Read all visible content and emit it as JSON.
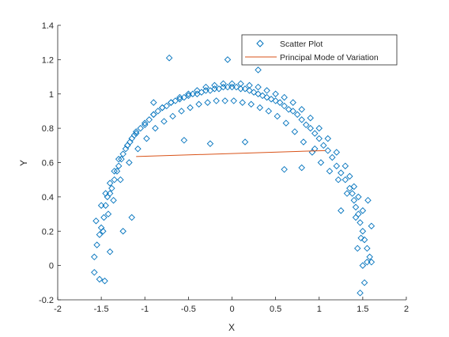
{
  "chart_data": {
    "type": "scatter",
    "xlabel": "X",
    "ylabel": "Y",
    "xlim": [
      -2,
      2
    ],
    "ylim": [
      -0.2,
      1.4
    ],
    "xticks": [
      "-2",
      "-1.5",
      "-1",
      "-0.5",
      "0",
      "0.5",
      "1",
      "1.5",
      "2"
    ],
    "yticks": [
      "-0.2",
      "0",
      "0.2",
      "0.4",
      "0.6",
      "0.8",
      "1",
      "1.2",
      "1.4"
    ],
    "grid": false,
    "legend_position": "top-right",
    "series": [
      {
        "name": "Scatter Plot",
        "kind": "scatter",
        "marker": "diamond",
        "color": "#0072BD",
        "x": [
          -1.58,
          -1.55,
          -1.52,
          -1.5,
          -1.47,
          -1.45,
          -1.43,
          -1.4,
          -1.38,
          -1.35,
          -1.32,
          -1.3,
          -1.27,
          -1.25,
          -1.22,
          -1.2,
          -1.17,
          -1.15,
          -1.12,
          -1.1,
          -1.05,
          -1.0,
          -0.95,
          -0.9,
          -0.85,
          -0.8,
          -0.75,
          -0.7,
          -0.65,
          -0.6,
          -0.55,
          -0.5,
          -0.45,
          -0.4,
          -0.35,
          -0.3,
          -0.25,
          -0.2,
          -0.15,
          -0.1,
          -0.05,
          0.0,
          0.05,
          0.1,
          0.15,
          0.2,
          0.25,
          0.3,
          0.35,
          0.4,
          0.45,
          0.5,
          0.55,
          0.6,
          0.65,
          0.7,
          0.75,
          0.8,
          0.85,
          0.9,
          0.95,
          1.0,
          1.05,
          1.1,
          1.15,
          1.2,
          1.25,
          1.3,
          1.35,
          1.38,
          1.4,
          1.42,
          1.45,
          1.47,
          1.5,
          1.52,
          1.55,
          1.58,
          1.6,
          -1.5,
          -1.45,
          -1.4,
          -1.35,
          -1.3,
          -1.2,
          -1.1,
          -1.0,
          -0.9,
          -0.8,
          -0.7,
          -0.6,
          -0.5,
          -0.4,
          -0.3,
          -0.2,
          -0.1,
          0.0,
          0.1,
          0.2,
          0.3,
          0.4,
          0.5,
          0.6,
          0.7,
          0.8,
          0.9,
          1.0,
          1.1,
          1.2,
          1.3,
          1.35,
          1.4,
          1.45,
          1.5,
          -1.48,
          -1.42,
          -1.36,
          -1.28,
          -1.18,
          -1.08,
          -0.98,
          -0.88,
          -0.78,
          -0.68,
          -0.58,
          -0.48,
          -0.38,
          -0.28,
          -0.18,
          -0.08,
          0.02,
          0.12,
          0.22,
          0.32,
          0.42,
          0.52,
          0.62,
          0.72,
          0.82,
          0.92,
          1.02,
          1.12,
          1.22,
          1.32,
          1.42,
          1.48,
          -0.72,
          -0.05,
          0.3,
          -1.58,
          -1.52,
          1.47,
          1.52,
          1.55,
          1.6,
          -1.25,
          -1.15,
          0.8,
          1.25,
          -0.55,
          0.6,
          -1.46,
          -1.4,
          1.44,
          1.5,
          -0.25,
          0.15,
          -1.56,
          1.56,
          -0.9,
          0.95
        ],
        "y": [
          0.05,
          0.12,
          0.18,
          0.22,
          0.28,
          0.35,
          0.4,
          0.42,
          0.45,
          0.5,
          0.55,
          0.58,
          0.62,
          0.65,
          0.68,
          0.7,
          0.72,
          0.74,
          0.76,
          0.78,
          0.8,
          0.82,
          0.85,
          0.88,
          0.9,
          0.92,
          0.93,
          0.95,
          0.96,
          0.97,
          0.98,
          0.99,
          1.0,
          1.0,
          1.01,
          1.02,
          1.02,
          1.03,
          1.03,
          1.04,
          1.04,
          1.04,
          1.04,
          1.03,
          1.03,
          1.02,
          1.01,
          1.0,
          0.99,
          0.98,
          0.97,
          0.96,
          0.95,
          0.93,
          0.91,
          0.9,
          0.88,
          0.85,
          0.82,
          0.8,
          0.77,
          0.74,
          0.7,
          0.67,
          0.63,
          0.58,
          0.54,
          0.5,
          0.45,
          0.42,
          0.38,
          0.34,
          0.3,
          0.25,
          0.2,
          0.15,
          0.1,
          0.05,
          0.02,
          0.35,
          0.42,
          0.48,
          0.55,
          0.62,
          0.7,
          0.77,
          0.83,
          0.88,
          0.92,
          0.95,
          0.98,
          1.0,
          1.02,
          1.04,
          1.05,
          1.06,
          1.06,
          1.06,
          1.05,
          1.04,
          1.02,
          1.0,
          0.98,
          0.95,
          0.91,
          0.86,
          0.8,
          0.74,
          0.66,
          0.58,
          0.52,
          0.46,
          0.4,
          0.32,
          0.2,
          0.3,
          0.38,
          0.5,
          0.6,
          0.68,
          0.74,
          0.8,
          0.84,
          0.87,
          0.9,
          0.92,
          0.94,
          0.95,
          0.96,
          0.96,
          0.96,
          0.95,
          0.94,
          0.92,
          0.9,
          0.87,
          0.83,
          0.78,
          0.72,
          0.66,
          0.6,
          0.55,
          0.5,
          0.42,
          0.28,
          0.16,
          1.21,
          1.2,
          1.14,
          -0.04,
          -0.08,
          -0.16,
          -0.1,
          0.02,
          0.23,
          0.2,
          0.28,
          0.57,
          0.32,
          0.73,
          0.56,
          -0.09,
          0.08,
          0.1,
          0.0,
          0.71,
          0.72,
          0.26,
          0.38,
          0.95,
          0.68
        ]
      },
      {
        "name": "Principal Mode of Variation",
        "kind": "line",
        "color": "#D95319",
        "x": [
          -1.1,
          1.07
        ],
        "y": [
          0.635,
          0.67
        ]
      }
    ]
  }
}
